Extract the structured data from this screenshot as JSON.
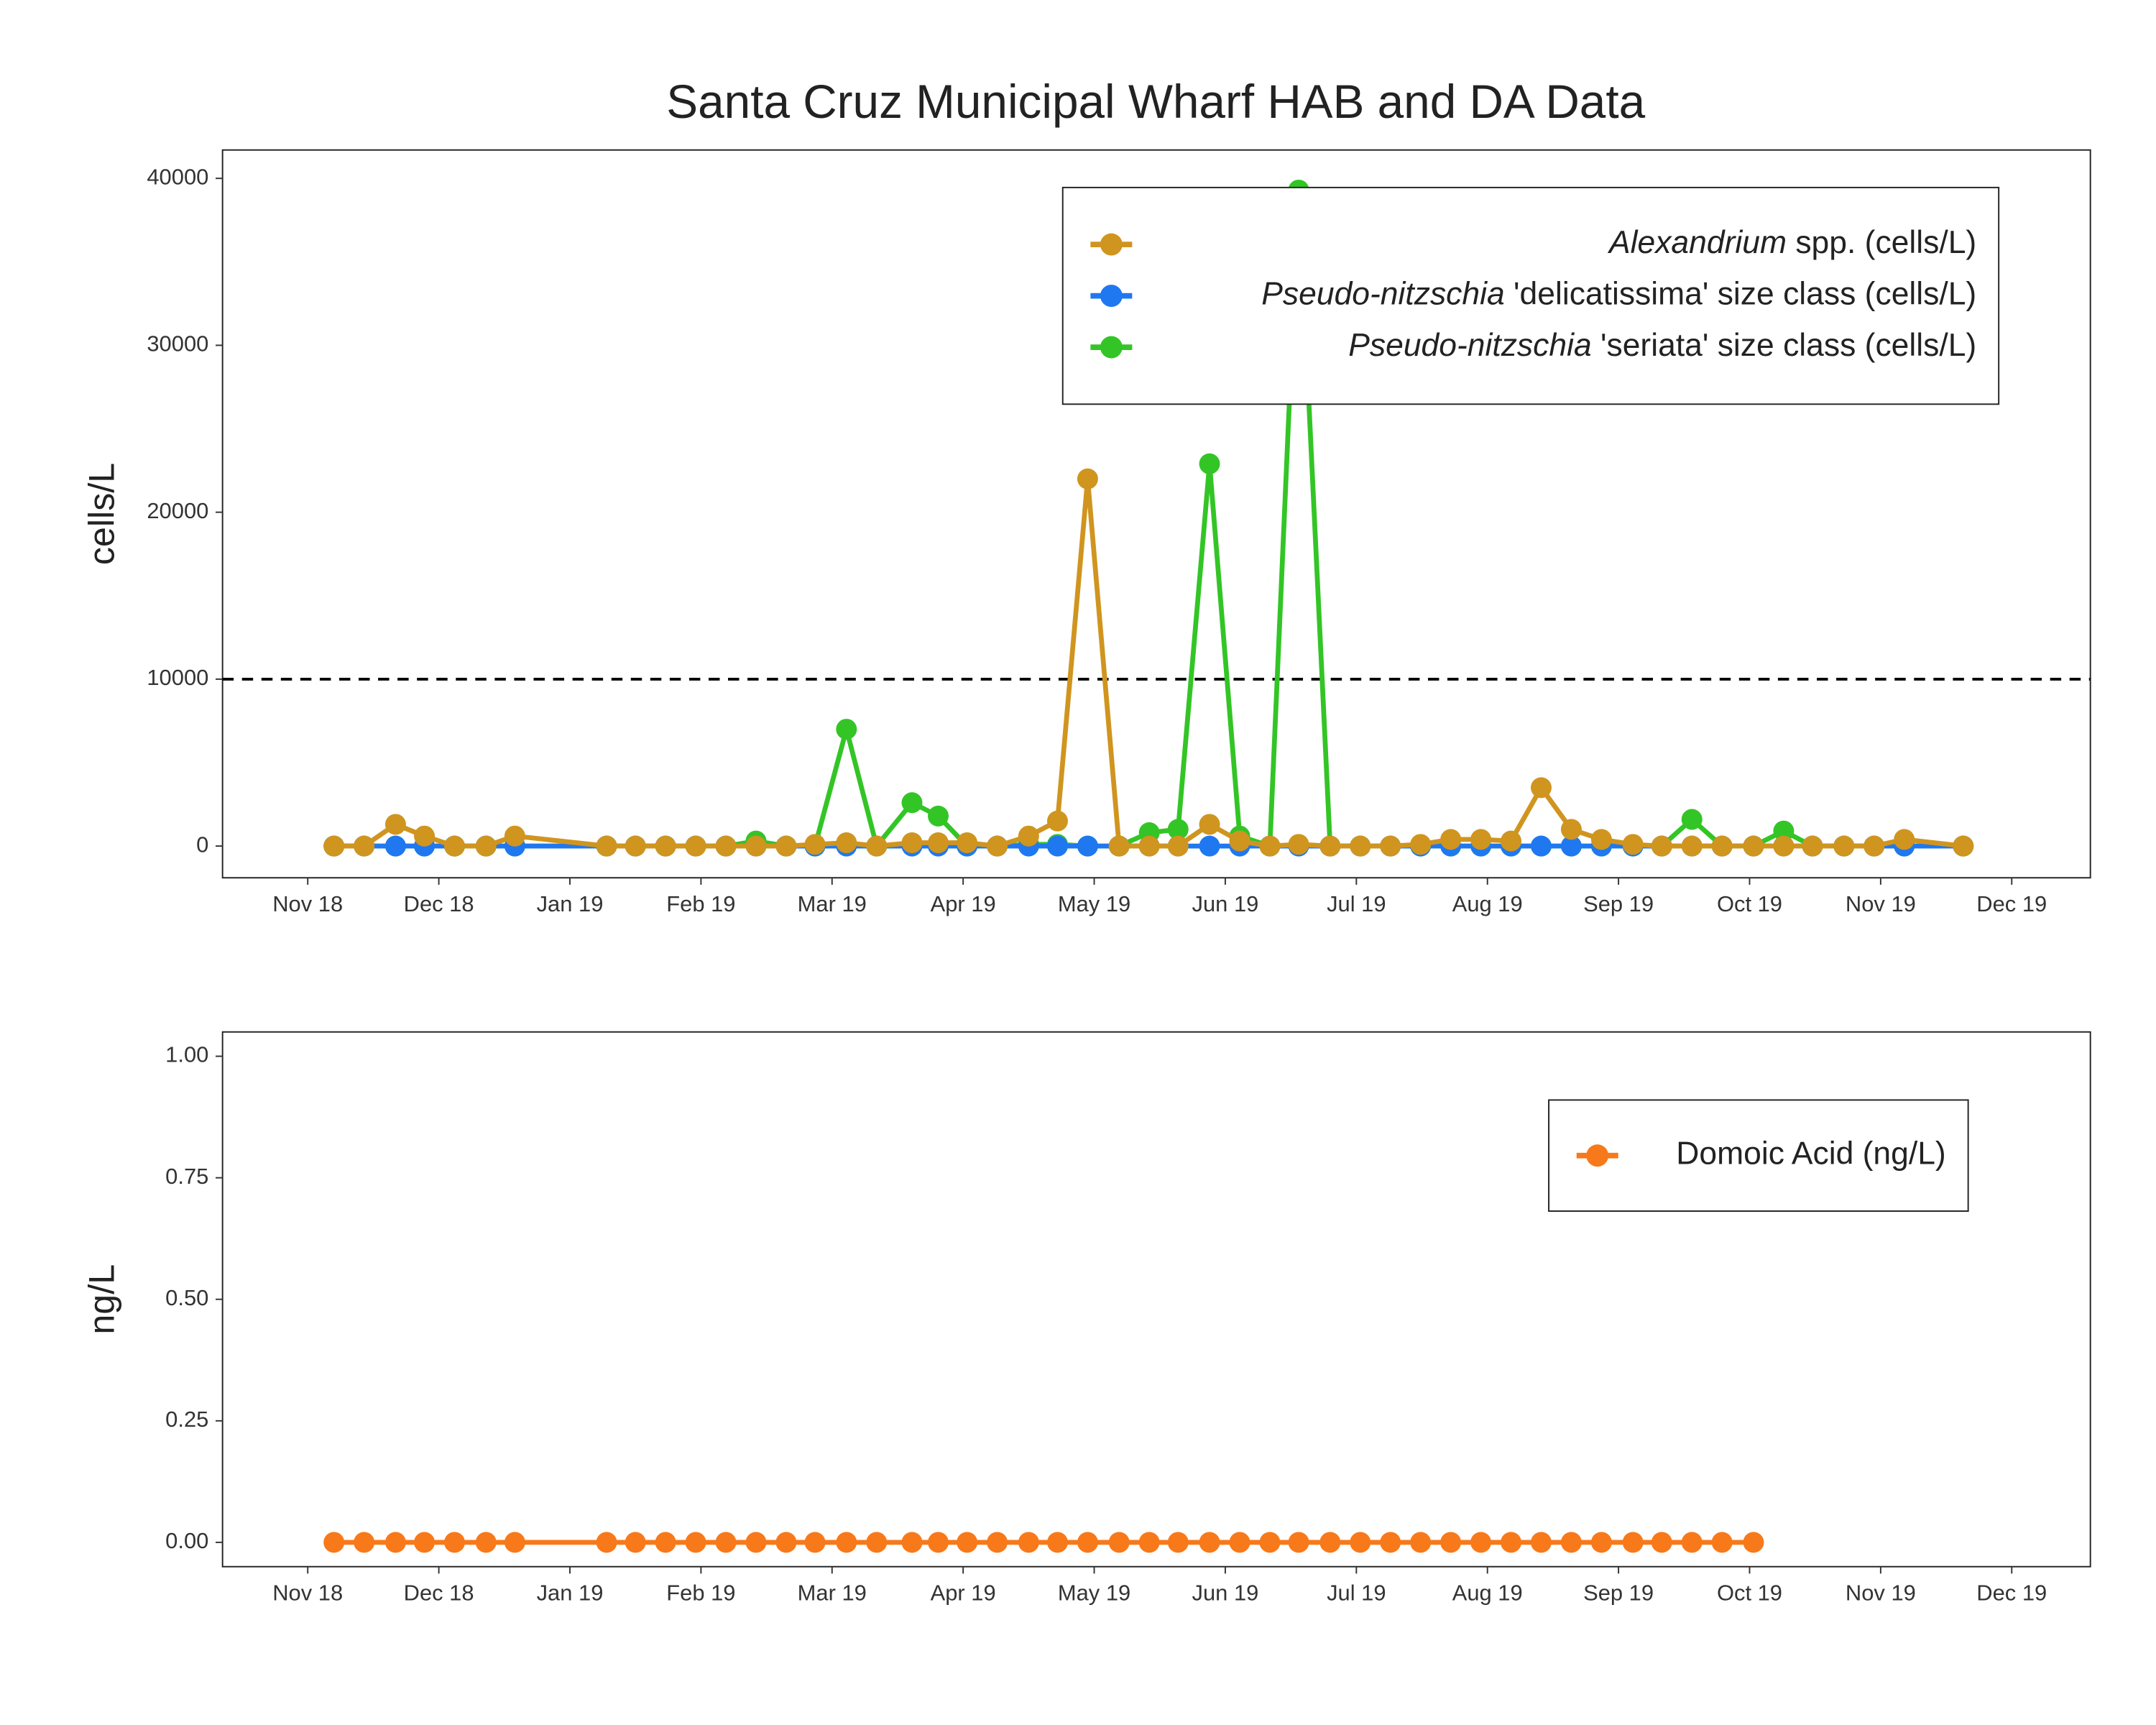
{
  "chart_data": [
    {
      "type": "line",
      "title": "Santa Cruz Municipal Wharf HAB and DA Data",
      "y_label": "cells/L",
      "x": [
        0.2,
        0.43,
        0.67,
        0.89,
        1.12,
        1.36,
        1.58,
        2.28,
        2.5,
        2.73,
        2.96,
        3.19,
        3.42,
        3.65,
        3.87,
        4.11,
        4.34,
        4.61,
        4.81,
        5.03,
        5.26,
        5.5,
        5.72,
        5.95,
        6.19,
        6.42,
        6.64,
        6.88,
        7.11,
        7.34,
        7.56,
        7.8,
        8.03,
        8.26,
        8.49,
        8.72,
        8.95,
        9.18,
        9.41,
        9.64,
        9.87,
        10.11,
        10.33,
        10.56,
        10.79,
        11.03,
        11.26,
        11.48,
        11.72,
        11.95,
        12.18,
        12.63
      ],
      "series": [
        {
          "name": "Alexandrium spp. (cells/L)",
          "color": "#d0951f",
          "values": [
            0,
            0,
            1300,
            600,
            0,
            0,
            600,
            0,
            0,
            0,
            0,
            0,
            0,
            0,
            100,
            200,
            0,
            200,
            200,
            200,
            0,
            600,
            1500,
            22000,
            0,
            0,
            0,
            1300,
            300,
            0,
            100,
            0,
            0,
            0,
            100,
            400,
            400,
            300,
            3500,
            1000,
            400,
            100,
            0,
            0,
            0,
            0,
            0,
            0,
            0,
            0,
            400,
            0
          ]
        },
        {
          "name": "Pseudo-nitzschia 'delicatissima' size class (cells/L)",
          "color": "#1f78f0",
          "values": [
            0,
            0,
            0,
            0,
            0,
            0,
            0,
            0,
            0,
            0,
            0,
            0,
            0,
            0,
            0,
            0,
            0,
            0,
            0,
            0,
            0,
            0,
            0,
            0,
            0,
            0,
            0,
            0,
            0,
            0,
            0,
            0,
            0,
            0,
            0,
            0,
            0,
            0,
            0,
            0,
            0,
            0,
            0,
            0,
            0,
            0,
            0,
            0,
            0,
            0,
            0,
            0
          ]
        },
        {
          "name": "Pseudo-nitzschia 'seriata' size class (cells/L)",
          "color": "#33c526",
          "values": [
            0,
            0,
            0,
            0,
            0,
            0,
            0,
            0,
            0,
            0,
            0,
            0,
            300,
            0,
            0,
            7000,
            0,
            2600,
            1800,
            0,
            0,
            100,
            100,
            0,
            0,
            800,
            1000,
            22900,
            600,
            0,
            39300,
            0,
            0,
            0,
            0,
            0,
            0,
            0,
            0,
            0,
            0,
            0,
            0,
            1600,
            0,
            0,
            900,
            0,
            0,
            0,
            0,
            0
          ]
        }
      ],
      "hline": 10000,
      "xlim": [
        -0.65,
        13.6
      ],
      "xticks": [
        {
          "value": 0,
          "label": "Nov 18"
        },
        {
          "value": 1,
          "label": "Dec 18"
        },
        {
          "value": 2,
          "label": "Jan 19"
        },
        {
          "value": 3,
          "label": "Feb 19"
        },
        {
          "value": 4,
          "label": "Mar 19"
        },
        {
          "value": 5,
          "label": "Apr 19"
        },
        {
          "value": 6,
          "label": "May 19"
        },
        {
          "value": 7,
          "label": "Jun 19"
        },
        {
          "value": 8,
          "label": "Jul 19"
        },
        {
          "value": 9,
          "label": "Aug 19"
        },
        {
          "value": 10,
          "label": "Sep 19"
        },
        {
          "value": 11,
          "label": "Oct 19"
        },
        {
          "value": 12,
          "label": "Nov 19"
        },
        {
          "value": 13,
          "label": "Dec 19"
        }
      ],
      "ylim": [
        -1900,
        41700
      ],
      "yticks": [
        0,
        10000,
        20000,
        30000,
        40000
      ],
      "legend": "top right"
    },
    {
      "type": "line",
      "y_label": "ng/L",
      "x": [
        0.2,
        0.43,
        0.67,
        0.89,
        1.12,
        1.36,
        1.58,
        2.28,
        2.5,
        2.73,
        2.96,
        3.19,
        3.42,
        3.65,
        3.87,
        4.11,
        4.34,
        4.61,
        4.81,
        5.03,
        5.26,
        5.5,
        5.72,
        5.95,
        6.19,
        6.42,
        6.64,
        6.88,
        7.11,
        7.34,
        7.56,
        7.8,
        8.03,
        8.26,
        8.49,
        8.72,
        8.95,
        9.18,
        9.41,
        9.64,
        9.87,
        10.11,
        10.33,
        10.56,
        10.79,
        11.03
      ],
      "series": [
        {
          "name": "Domoic Acid (ng/L)",
          "color": "#f8791a",
          "values": [
            0,
            0,
            0,
            0,
            0,
            0,
            0,
            0,
            0,
            0,
            0,
            0,
            0,
            0,
            0,
            0,
            0,
            0,
            0,
            0,
            0,
            0,
            0,
            0,
            0,
            0,
            0,
            0,
            0,
            0,
            0,
            0,
            0,
            0,
            0,
            0,
            0,
            0,
            0,
            0,
            0,
            0,
            0,
            0,
            0,
            0
          ]
        }
      ],
      "xlim": [
        -0.65,
        13.6
      ],
      "xticks": [
        {
          "value": 0,
          "label": "Nov 18"
        },
        {
          "value": 1,
          "label": "Dec 18"
        },
        {
          "value": 2,
          "label": "Jan 19"
        },
        {
          "value": 3,
          "label": "Feb 19"
        },
        {
          "value": 4,
          "label": "Mar 19"
        },
        {
          "value": 5,
          "label": "Apr 19"
        },
        {
          "value": 6,
          "label": "May 19"
        },
        {
          "value": 7,
          "label": "Jun 19"
        },
        {
          "value": 8,
          "label": "Jul 19"
        },
        {
          "value": 9,
          "label": "Aug 19"
        },
        {
          "value": 10,
          "label": "Sep 19"
        },
        {
          "value": 11,
          "label": "Oct 19"
        },
        {
          "value": 12,
          "label": "Nov 19"
        },
        {
          "value": 13,
          "label": "Dec 19"
        }
      ],
      "ylim": [
        -0.05,
        1.05
      ],
      "yticks": [
        {
          "value": 0,
          "label": "0.00"
        },
        {
          "value": 0.25,
          "label": "0.25"
        },
        {
          "value": 0.5,
          "label": "0.50"
        },
        {
          "value": 0.75,
          "label": "0.75"
        },
        {
          "value": 1,
          "label": "1.00"
        }
      ],
      "legend": "top right"
    }
  ]
}
